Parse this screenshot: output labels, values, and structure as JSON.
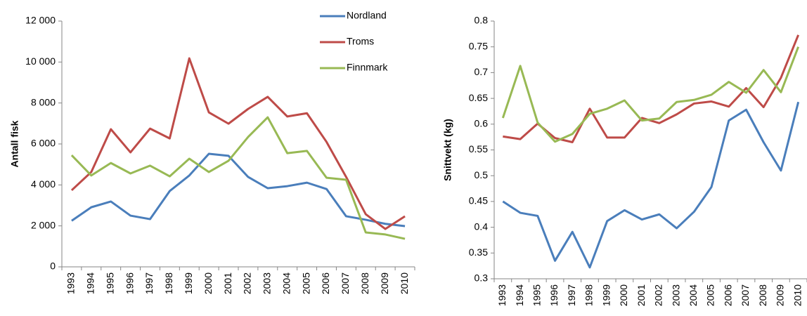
{
  "chart_data": [
    {
      "type": "line",
      "y_label": "Antall fisk",
      "categories": [
        "1993",
        "1994",
        "1995",
        "1996",
        "1997",
        "1998",
        "1999",
        "2000",
        "2001",
        "2002",
        "2003",
        "2004",
        "2005",
        "2006",
        "2007",
        "2008",
        "2009",
        "2010"
      ],
      "series": [
        {
          "name": "Nordland",
          "color": "#4a7ebb",
          "values": [
            2250,
            2910,
            3190,
            2500,
            2330,
            3700,
            4460,
            5520,
            5420,
            4390,
            3840,
            3940,
            4110,
            3800,
            2470,
            2300,
            2100,
            1990
          ]
        },
        {
          "name": "Troms",
          "color": "#be4b48",
          "values": [
            3740,
            4630,
            6720,
            5590,
            6750,
            6270,
            10180,
            7540,
            6990,
            7710,
            8300,
            7340,
            7500,
            6100,
            4390,
            2570,
            1850,
            2470
          ]
        },
        {
          "name": "Finnmark",
          "color": "#98b954",
          "values": [
            5450,
            4460,
            5070,
            4560,
            4940,
            4420,
            5280,
            4630,
            5180,
            6340,
            7300,
            5550,
            5660,
            4350,
            4250,
            1680,
            1580,
            1370
          ]
        }
      ],
      "ylim": [
        0,
        12000
      ],
      "yticks": [
        0,
        {
          "value": 2000,
          "label": "2 000"
        },
        {
          "value": 4000,
          "label": "4 000"
        },
        {
          "value": 6000,
          "label": "6 000"
        },
        {
          "value": 8000,
          "label": "8 000"
        },
        {
          "value": 10000,
          "label": "10 000"
        },
        {
          "value": 12000,
          "label": "12 000"
        }
      ],
      "legend": "top-right"
    },
    {
      "type": "line",
      "y_label": "Snittvekt (kg)",
      "categories": [
        "1993",
        "1994",
        "1995",
        "1996",
        "1997",
        "1998",
        "1999",
        "2000",
        "2001",
        "2002",
        "2003",
        "2004",
        "2005",
        "2006",
        "2007",
        "2008",
        "2009",
        "2010"
      ],
      "series": [
        {
          "color": "#4a7ebb",
          "values": [
            0.45,
            0.428,
            0.422,
            0.335,
            0.391,
            0.322,
            0.412,
            0.433,
            0.415,
            0.425,
            0.398,
            0.43,
            0.478,
            0.607,
            0.628,
            0.565,
            0.51,
            0.643
          ]
        },
        {
          "color": "#be4b48",
          "values": [
            0.576,
            0.571,
            0.601,
            0.573,
            0.565,
            0.63,
            0.574,
            0.574,
            0.612,
            0.602,
            0.619,
            0.64,
            0.644,
            0.634,
            0.67,
            0.633,
            0.69,
            0.773
          ]
        },
        {
          "color": "#98b954",
          "values": [
            0.612,
            0.713,
            0.603,
            0.566,
            0.581,
            0.62,
            0.63,
            0.646,
            0.607,
            0.611,
            0.643,
            0.647,
            0.657,
            0.682,
            0.661,
            0.705,
            0.662,
            0.75
          ]
        }
      ],
      "ylim": [
        0.3,
        0.8
      ],
      "yticks": [
        0.3,
        0.35,
        0.4,
        0.45,
        0.5,
        0.55,
        0.6,
        0.65,
        0.7,
        0.75,
        0.8
      ]
    }
  ]
}
